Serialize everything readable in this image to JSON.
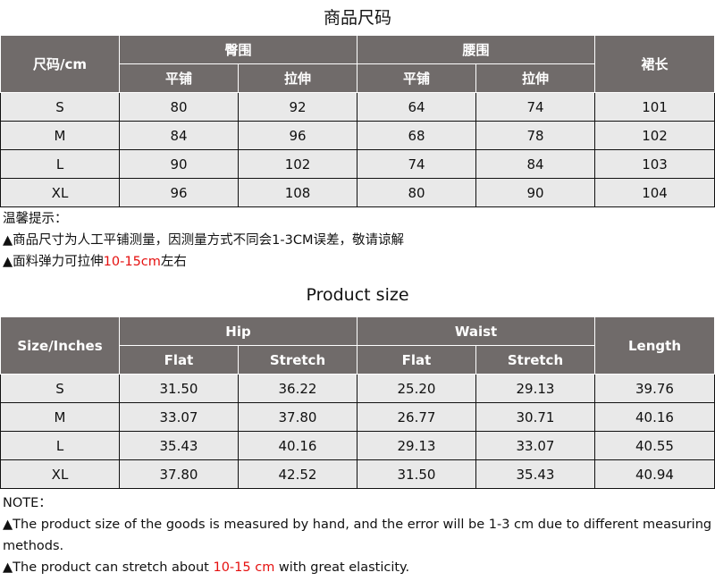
{
  "cn": {
    "title": "商品尺码",
    "size_header": "尺码/cm",
    "groups": [
      "臀围",
      "腰围"
    ],
    "sub": [
      "平铺",
      "拉伸",
      "平铺",
      "拉伸"
    ],
    "length": "裙长",
    "rows": [
      [
        "S",
        "80",
        "92",
        "64",
        "74",
        "101"
      ],
      [
        "M",
        "84",
        "96",
        "68",
        "78",
        "102"
      ],
      [
        "L",
        "90",
        "102",
        "74",
        "84",
        "103"
      ],
      [
        "XL",
        "96",
        "108",
        "80",
        "90",
        "104"
      ]
    ],
    "note_title": "温馨提示：",
    "note1": "▲商品尺寸为人工平铺测量，因测量方式不同会1-3CM误差，敬请谅解",
    "note2_pre": "▲面料弹力可拉伸",
    "note2_red": "10-15cm",
    "note2_post": "左右"
  },
  "en": {
    "title": "Product size",
    "size_header": "Size/Inches",
    "groups": [
      "Hip",
      "Waist"
    ],
    "sub": [
      "Flat",
      "Stretch",
      "Flat",
      "Stretch"
    ],
    "length": "Length",
    "rows": [
      [
        "S",
        "31.50",
        "36.22",
        "25.20",
        "29.13",
        "39.76"
      ],
      [
        "M",
        "33.07",
        "37.80",
        "26.77",
        "30.71",
        "40.16"
      ],
      [
        "L",
        "35.43",
        "40.16",
        "29.13",
        "33.07",
        "40.55"
      ],
      [
        "XL",
        "37.80",
        "42.52",
        "31.50",
        "35.43",
        "40.94"
      ]
    ],
    "note_title": "NOTE：",
    "note1": "▲The product size of the goods is measured by hand, and the error will be 1-3 cm due to different measuring methods.",
    "note2_pre": "▲The product can stretch about ",
    "note2_red": "10-15 cm",
    "note2_post": " with great elasticity."
  },
  "colors": {
    "header": "#706b6a",
    "row": "#e9e9e9",
    "accent": "#e5100f"
  }
}
